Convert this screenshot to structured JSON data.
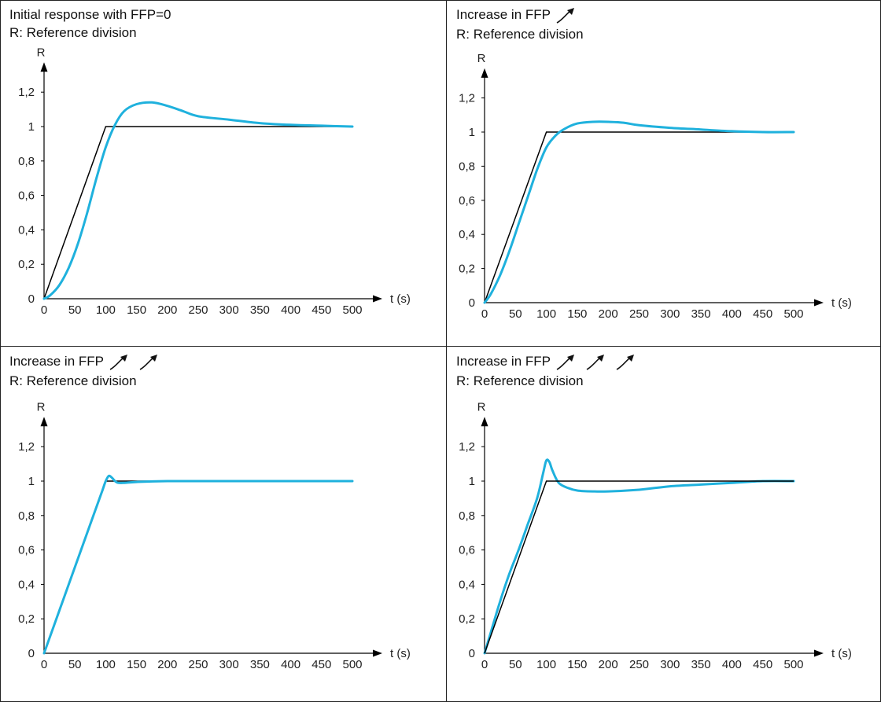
{
  "colors": {
    "border": "#222222",
    "axis": "#000000",
    "reference": "#000000",
    "response": "#1fb1dd"
  },
  "icons": {
    "increase_arrow": "arrow-up-right-icon"
  },
  "chart_data": [
    {
      "type": "line",
      "title": "Initial response with FFP=0",
      "subtitle": "R: Reference division",
      "ffp_increase_arrows": 0,
      "xlabel": "t (s)",
      "ylabel": "R",
      "xlim": [
        0,
        500
      ],
      "ylim": [
        0,
        1.3
      ],
      "xticks": [
        "0",
        "50",
        "100",
        "150",
        "200",
        "250",
        "300",
        "350",
        "400",
        "450",
        "500"
      ],
      "yticks": [
        "0",
        "0,2",
        "0,4",
        "0,6",
        "0,8",
        "1",
        "1,2"
      ],
      "series": [
        {
          "values": {
            "x": [
              0,
              100,
              500
            ],
            "y": [
              0,
              1,
              1
            ]
          }
        },
        {
          "values": {
            "x": [
              0,
              10,
              25,
              40,
              55,
              70,
              85,
              100,
              115,
              130,
              150,
              175,
              200,
              225,
              250,
              300,
              350,
              400,
              450,
              500
            ],
            "y": [
              0,
              0.02,
              0.08,
              0.18,
              0.32,
              0.5,
              0.7,
              0.88,
              1.01,
              1.09,
              1.13,
              1.14,
              1.12,
              1.09,
              1.06,
              1.04,
              1.02,
              1.01,
              1.005,
              1.0
            ]
          }
        }
      ]
    },
    {
      "type": "line",
      "title": "Increase in FFP",
      "subtitle": "R: Reference division",
      "ffp_increase_arrows": 1,
      "xlabel": "t (s)",
      "ylabel": "R",
      "xlim": [
        0,
        500
      ],
      "ylim": [
        0,
        1.3
      ],
      "xticks": [
        "0",
        "50",
        "100",
        "150",
        "200",
        "250",
        "300",
        "350",
        "400",
        "450",
        "500"
      ],
      "yticks": [
        "0",
        "0,2",
        "0,4",
        "0,6",
        "0,8",
        "1",
        "1,2"
      ],
      "series": [
        {
          "values": {
            "x": [
              0,
              100,
              500
            ],
            "y": [
              0,
              1,
              1
            ]
          }
        },
        {
          "values": {
            "x": [
              0,
              10,
              25,
              40,
              55,
              70,
              85,
              100,
              115,
              130,
              150,
              175,
              200,
              225,
              250,
              300,
              350,
              400,
              450,
              500
            ],
            "y": [
              0,
              0.05,
              0.16,
              0.3,
              0.46,
              0.62,
              0.78,
              0.91,
              0.98,
              1.02,
              1.05,
              1.06,
              1.06,
              1.055,
              1.04,
              1.025,
              1.015,
              1.005,
              1.0,
              1.0
            ]
          }
        }
      ]
    },
    {
      "type": "line",
      "title": "Increase in FFP",
      "subtitle": "R: Reference division",
      "ffp_increase_arrows": 2,
      "xlabel": "t (s)",
      "ylabel": "R",
      "xlim": [
        0,
        500
      ],
      "ylim": [
        0,
        1.3
      ],
      "xticks": [
        "0",
        "50",
        "100",
        "150",
        "200",
        "250",
        "300",
        "350",
        "400",
        "450",
        "500"
      ],
      "yticks": [
        "0",
        "0,2",
        "0,4",
        "0,6",
        "0,8",
        "1",
        "1,2"
      ],
      "series": [
        {
          "values": {
            "x": [
              0,
              100,
              500
            ],
            "y": [
              0,
              1,
              1
            ]
          }
        },
        {
          "values": {
            "x": [
              0,
              25,
              50,
              75,
              95,
              100,
              105,
              110,
              115,
              120,
              130,
              150,
              200,
              300,
              400,
              500
            ],
            "y": [
              0,
              0.25,
              0.5,
              0.75,
              0.95,
              1.0,
              1.03,
              1.02,
              1.0,
              0.99,
              0.99,
              0.995,
              1.0,
              1.0,
              1.0,
              1.0
            ]
          }
        }
      ]
    },
    {
      "type": "line",
      "title": "Increase in FFP",
      "subtitle": "R: Reference division",
      "ffp_increase_arrows": 3,
      "xlabel": "t (s)",
      "ylabel": "R",
      "xlim": [
        0,
        500
      ],
      "ylim": [
        0,
        1.3
      ],
      "xticks": [
        "0",
        "50",
        "100",
        "150",
        "200",
        "250",
        "300",
        "350",
        "400",
        "450",
        "500"
      ],
      "yticks": [
        "0",
        "0,2",
        "0,4",
        "0,6",
        "0,8",
        "1",
        "1,2"
      ],
      "series": [
        {
          "values": {
            "x": [
              0,
              10,
              25,
              40,
              55,
              70,
              85,
              95,
              100,
              105,
              110,
              120,
              135,
              150,
              175,
              200,
              250,
              300,
              350,
              400,
              450,
              500
            ],
            "y": [
              0,
              0.12,
              0.3,
              0.46,
              0.6,
              0.75,
              0.9,
              1.05,
              1.12,
              1.11,
              1.06,
              0.99,
              0.96,
              0.945,
              0.94,
              0.94,
              0.95,
              0.97,
              0.98,
              0.99,
              1.0,
              1.0
            ]
          }
        },
        {
          "values": {
            "x": [
              0,
              100,
              500
            ],
            "y": [
              0,
              1,
              1
            ]
          }
        }
      ]
    }
  ]
}
